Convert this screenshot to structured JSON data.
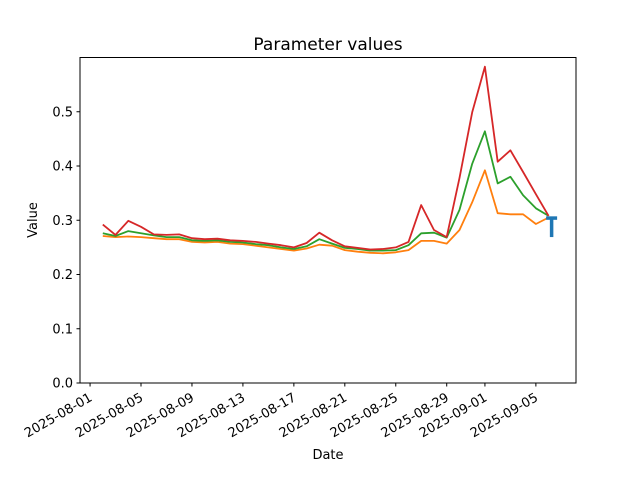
{
  "figure": {
    "background": "#ffffff"
  },
  "chart_data": {
    "type": "line",
    "title": "Parameter values",
    "xlabel": "Date",
    "ylabel": "Value",
    "grid": false,
    "legend": null,
    "ylim": [
      0,
      0.6
    ],
    "yticks": [
      0,
      0.1,
      0.2,
      0.3,
      0.4,
      0.5
    ],
    "ytick_labels": [
      "0.0",
      "0.1",
      "0.2",
      "0.3",
      "0.4",
      "0.5"
    ],
    "xticks": [
      "2025-08-01",
      "2025-08-05",
      "2025-08-09",
      "2025-08-13",
      "2025-08-17",
      "2025-08-21",
      "2025-08-25",
      "2025-08-29",
      "2025-09-01",
      "2025-09-05"
    ],
    "x_dates": [
      "2025-08-02",
      "2025-08-03",
      "2025-08-04",
      "2025-08-05",
      "2025-08-06",
      "2025-08-07",
      "2025-08-08",
      "2025-08-09",
      "2025-08-10",
      "2025-08-11",
      "2025-08-12",
      "2025-08-13",
      "2025-08-14",
      "2025-08-15",
      "2025-08-16",
      "2025-08-17",
      "2025-08-18",
      "2025-08-19",
      "2025-08-20",
      "2025-08-21",
      "2025-08-22",
      "2025-08-23",
      "2025-08-24",
      "2025-08-25",
      "2025-08-26",
      "2025-08-27",
      "2025-08-28",
      "2025-08-29",
      "2025-08-30",
      "2025-08-31",
      "2025-09-01",
      "2025-09-02",
      "2025-09-03",
      "2025-09-04",
      "2025-09-05",
      "2025-09-06"
    ],
    "series": [
      {
        "name": "red",
        "color": "#d62728",
        "values": [
          0.292,
          0.273,
          0.299,
          0.288,
          0.274,
          0.273,
          0.274,
          0.267,
          0.265,
          0.266,
          0.263,
          0.262,
          0.26,
          0.257,
          0.254,
          0.25,
          0.258,
          0.277,
          0.263,
          0.252,
          0.249,
          0.246,
          0.247,
          0.25,
          0.26,
          0.328,
          0.282,
          0.269,
          0.378,
          0.499,
          0.583,
          0.408,
          0.429,
          0.389,
          0.348,
          0.308
        ]
      },
      {
        "name": "green",
        "color": "#2ca02c",
        "values": [
          0.276,
          0.271,
          0.28,
          0.276,
          0.272,
          0.269,
          0.269,
          0.263,
          0.262,
          0.263,
          0.26,
          0.259,
          0.256,
          0.254,
          0.25,
          0.247,
          0.252,
          0.265,
          0.257,
          0.249,
          0.247,
          0.244,
          0.244,
          0.245,
          0.254,
          0.276,
          0.277,
          0.268,
          0.319,
          0.404,
          0.464,
          0.368,
          0.38,
          0.346,
          0.322,
          0.308
        ]
      },
      {
        "name": "orange",
        "color": "#ff7f0e",
        "values": [
          0.271,
          0.269,
          0.27,
          0.269,
          0.267,
          0.265,
          0.265,
          0.26,
          0.259,
          0.26,
          0.257,
          0.256,
          0.253,
          0.25,
          0.247,
          0.244,
          0.248,
          0.255,
          0.253,
          0.245,
          0.242,
          0.24,
          0.239,
          0.241,
          0.245,
          0.262,
          0.262,
          0.257,
          0.282,
          0.333,
          0.392,
          0.313,
          0.311,
          0.311,
          0.293,
          0.305
        ]
      }
    ],
    "errorbar": {
      "date": "2025-09-06",
      "y_top": 0.304,
      "y_bottom": 0.269,
      "cap": "top",
      "color": "#1f77b4"
    }
  }
}
